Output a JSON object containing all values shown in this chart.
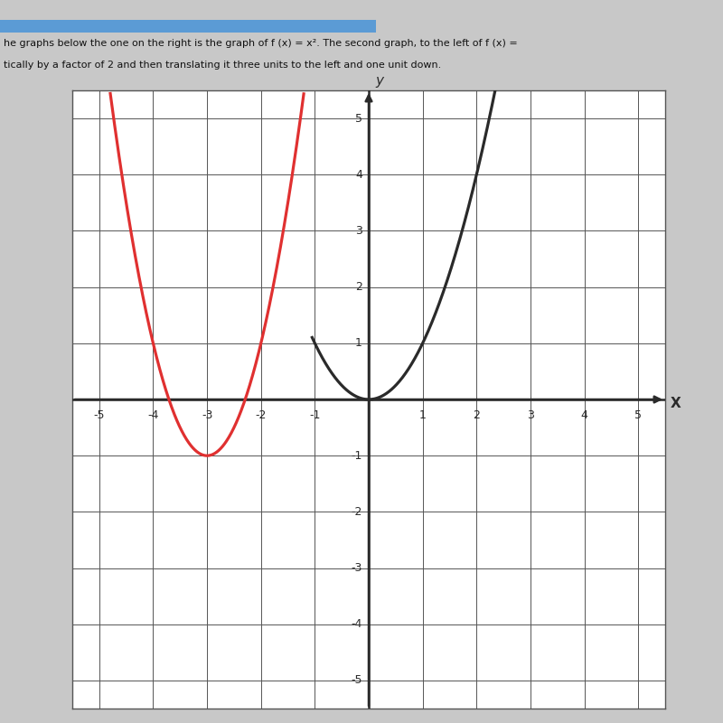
{
  "xlim": [
    -5.5,
    5.5
  ],
  "ylim": [
    -5.5,
    5.5
  ],
  "xticks": [
    -5,
    -4,
    -3,
    -2,
    -1,
    1,
    2,
    3,
    4,
    5
  ],
  "yticks": [
    -5,
    -4,
    -3,
    -2,
    -1,
    1,
    2,
    3,
    4,
    5
  ],
  "xlabel": "X",
  "ylabel": "y",
  "f_color": "#2a2a2a",
  "g_color": "#e03030",
  "graph_bg": "#ffffff",
  "overall_bg": "#c8c8c8",
  "grid_color": "#555555",
  "axis_color": "#2a2a2a",
  "title_bar_color": "#5b9bd5",
  "text_color": "#111111",
  "text_line1": "he graphs below the one on the right is the graph of f (x) = x². The second graph, to the left of f (x) =",
  "text_line2": "tically by a factor of 2 and then translating it three units to the left and one unit down."
}
